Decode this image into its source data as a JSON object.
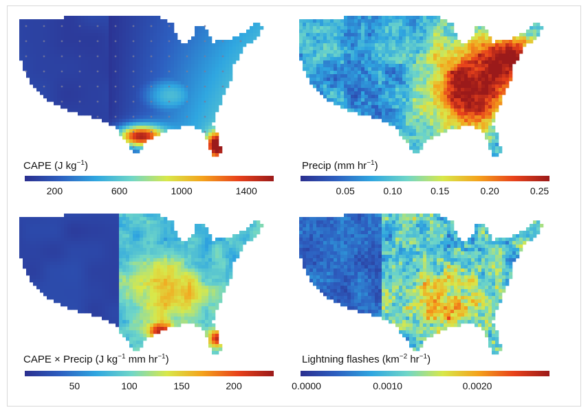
{
  "panels": [
    {
      "id": "cape",
      "title_main": "CAPE (J kg",
      "title_sup": "−1",
      "title_end": ")",
      "ticks": [
        "200",
        "600",
        "1000",
        "1400"
      ],
      "tick_pos": [
        0.12,
        0.38,
        0.63,
        0.89
      ],
      "pattern": "smooth-south"
    },
    {
      "id": "precip",
      "title_main": "Precip (mm hr",
      "title_sup": "−1",
      "title_end": ")",
      "ticks": [
        "0.05",
        "0.10",
        "0.15",
        "0.20",
        "0.25"
      ],
      "tick_pos": [
        0.18,
        0.37,
        0.56,
        0.76,
        0.96
      ],
      "pattern": "east-heavy"
    },
    {
      "id": "cape-precip",
      "title_main": "CAPE × Precip (J kg",
      "title_sup": "−1",
      "title_end": " mm hr",
      "title_sup2": "−1",
      "title_end2": ")",
      "ticks": [
        "50",
        "100",
        "150",
        "200"
      ],
      "tick_pos": [
        0.2,
        0.42,
        0.63,
        0.84
      ],
      "pattern": "southeast"
    },
    {
      "id": "lightning",
      "title_main": "Lightning flashes (km",
      "title_sup": "−2",
      "title_end": " hr",
      "title_sup2": "−1",
      "title_end2": ")",
      "ticks": [
        "0.0000",
        "0.0010",
        "0.0020"
      ],
      "tick_pos": [
        0.0,
        0.35,
        0.71
      ],
      "pattern": "central-noisy"
    }
  ],
  "colormap": [
    "#2b2f8f",
    "#2d5fc0",
    "#2fa6e0",
    "#6fd6c8",
    "#d8e84a",
    "#f4a21c",
    "#e8421b",
    "#9b1a1a"
  ]
}
